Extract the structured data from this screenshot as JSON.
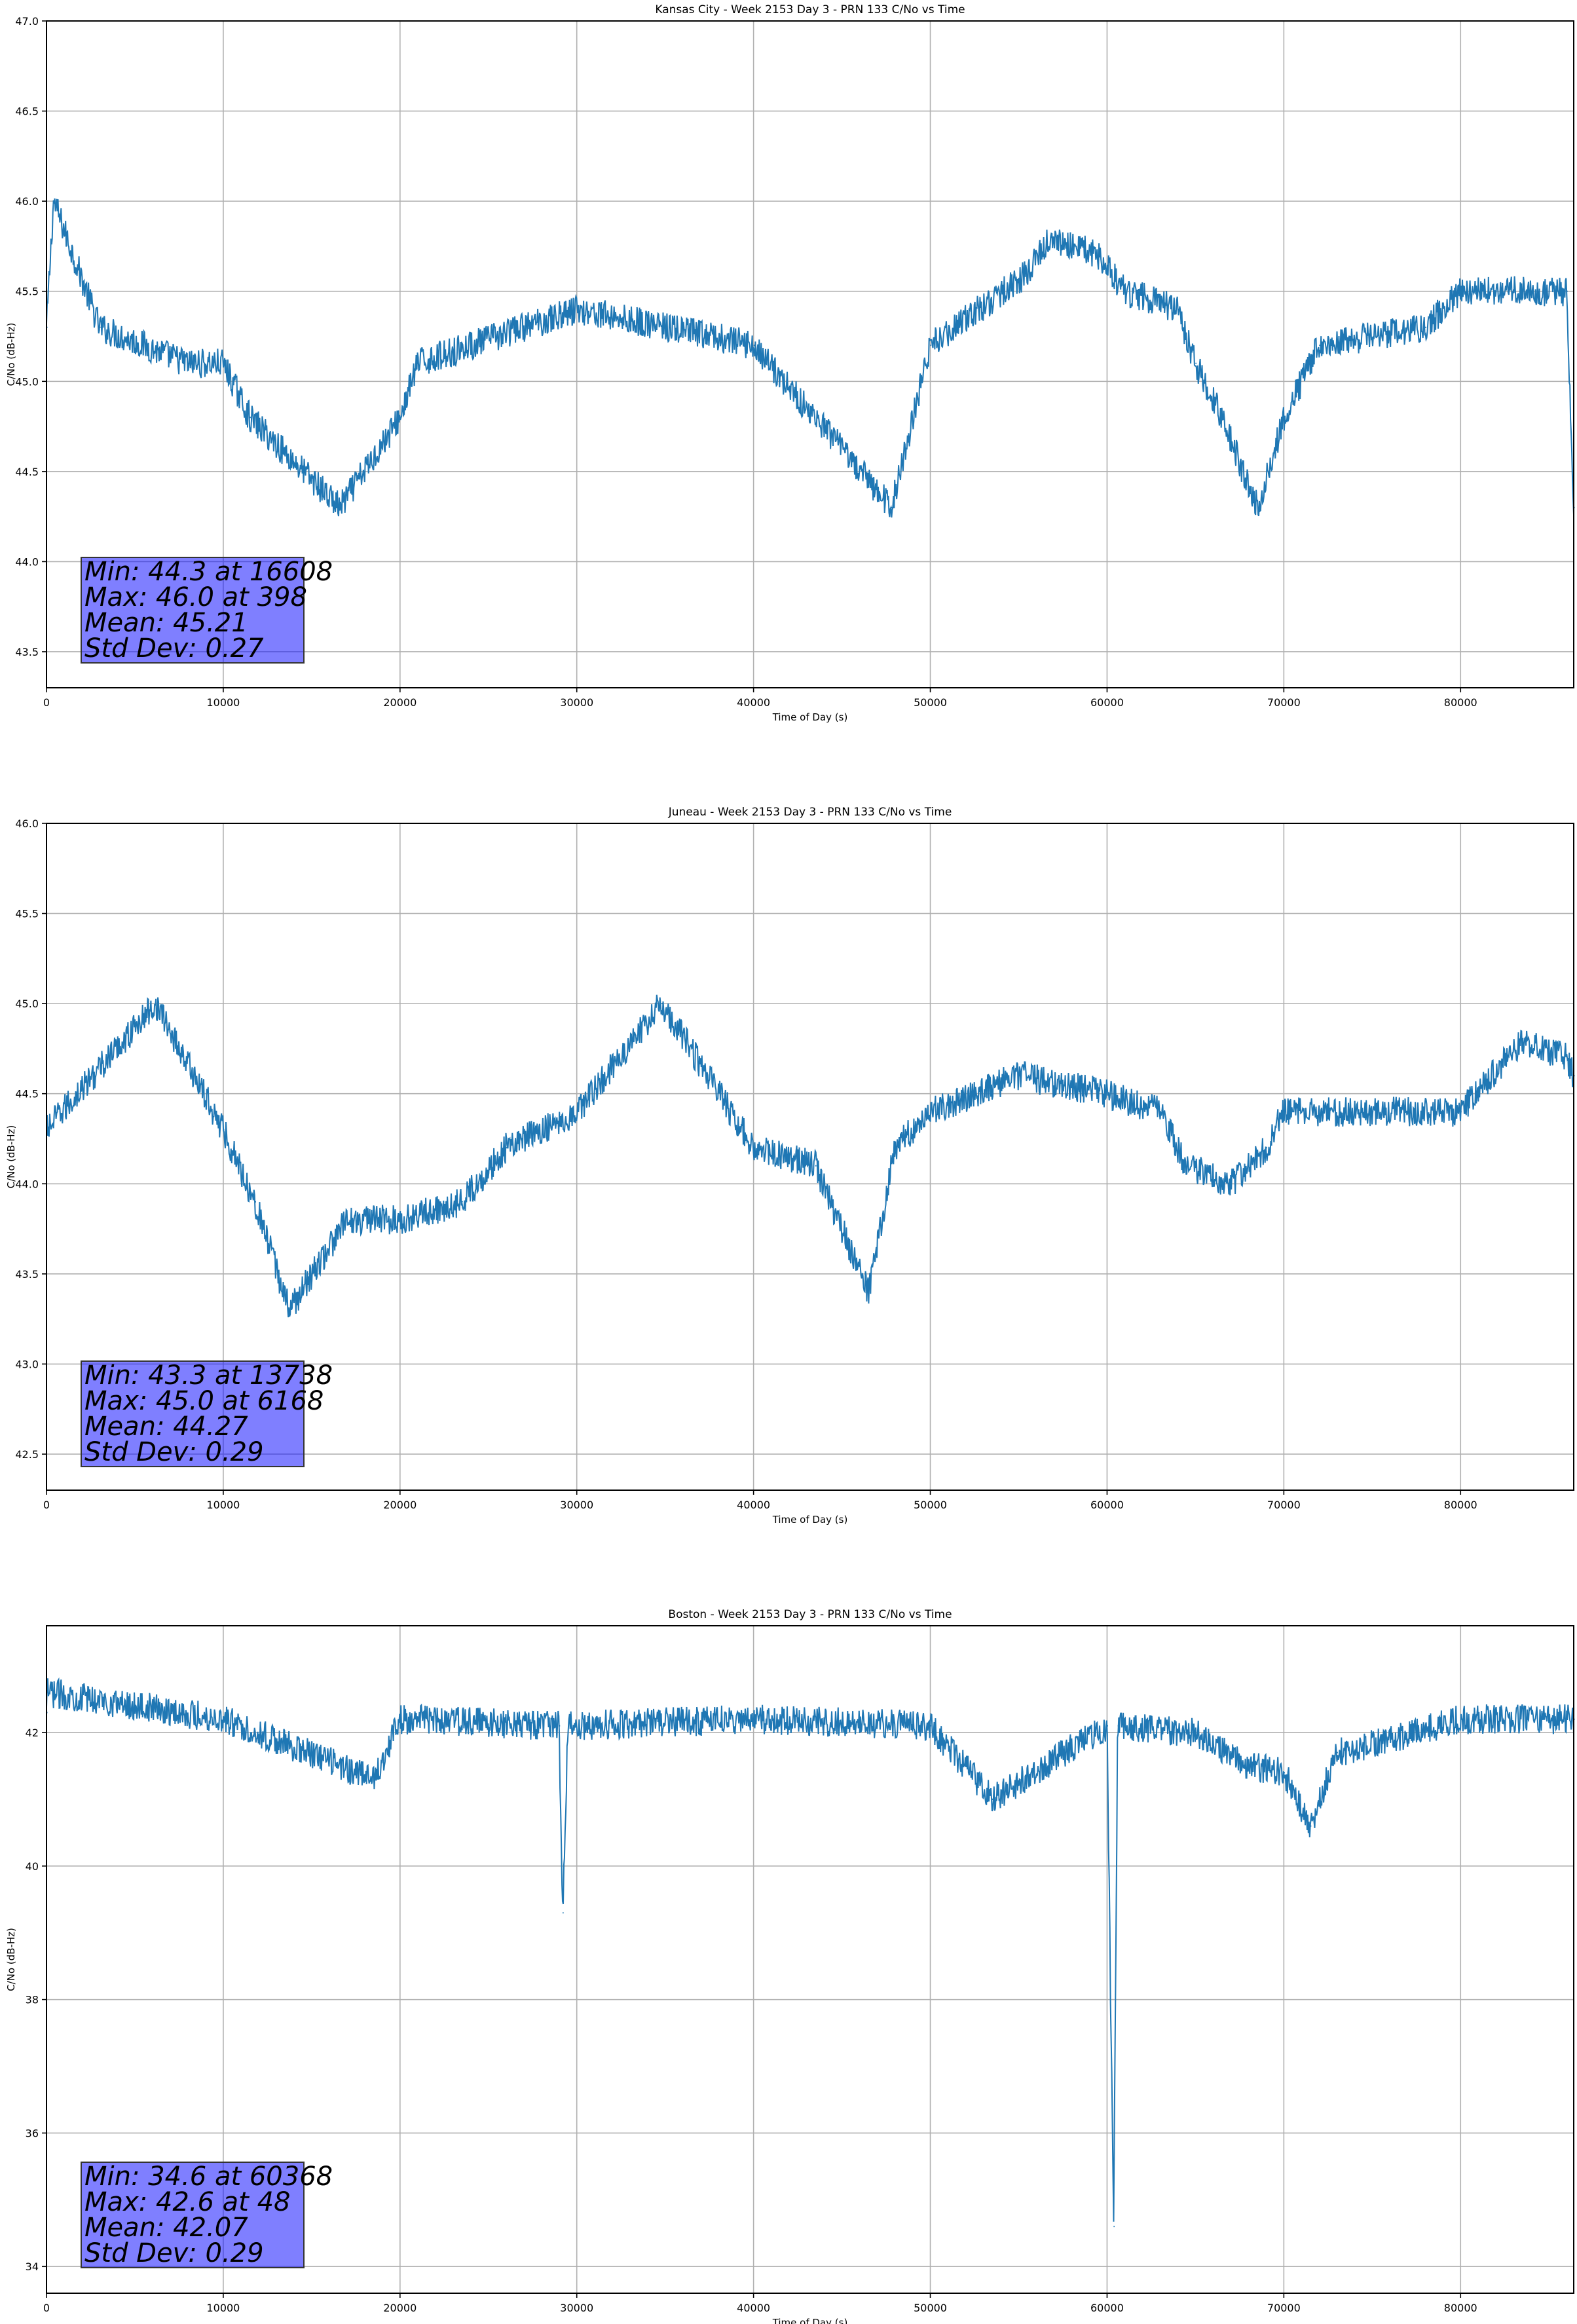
{
  "chart_data": [
    {
      "type": "line",
      "title": "Kansas City - Week 2153 Day 3 - PRN 133 C/No vs Time",
      "xlabel": "Time of Day (s)",
      "ylabel": "C/No (dB-Hz)",
      "xlim": [
        0,
        86400
      ],
      "ylim": [
        43.3,
        47.0
      ],
      "xticks": [
        "0",
        "10000",
        "20000",
        "30000",
        "40000",
        "50000",
        "60000",
        "70000",
        "80000"
      ],
      "yticks": [
        "43.5",
        "44.0",
        "44.5",
        "45.0",
        "45.5",
        "46.0",
        "46.5",
        "47.0"
      ],
      "grid": true,
      "color": "#1f77b4",
      "stats": {
        "min": "Min: 44.3 at 16608",
        "max": "Max: 46.0 at 398",
        "mean": "Mean: 45.21",
        "std": "Std Dev: 0.27"
      },
      "series": [
        {
          "x": [
            0,
            398,
            3000,
            8000,
            10000,
            11500,
            16608,
            20000,
            21000,
            24000,
            30000,
            40000,
            47800,
            50000,
            55500,
            56800,
            59500,
            61000,
            64000,
            65000,
            66500,
            68500,
            70000,
            72000,
            78000,
            80000,
            86000,
            86400
          ],
          "y": [
            45.3,
            46.0,
            45.3,
            45.1,
            45.1,
            44.8,
            44.3,
            44.8,
            45.1,
            45.2,
            45.4,
            45.2,
            44.3,
            45.2,
            45.6,
            45.8,
            45.7,
            45.5,
            45.4,
            45.1,
            44.8,
            44.3,
            44.8,
            45.2,
            45.3,
            45.5,
            45.5,
            44.3
          ]
        }
      ]
    },
    {
      "type": "line",
      "title": "Juneau - Week 2153 Day 3 - PRN 133 C/No vs Time",
      "xlabel": "Time of Day (s)",
      "ylabel": "C/No (dB-Hz)",
      "xlim": [
        0,
        86400
      ],
      "ylim": [
        42.3,
        46.0
      ],
      "xticks": [
        "0",
        "10000",
        "20000",
        "30000",
        "40000",
        "50000",
        "60000",
        "70000",
        "80000"
      ],
      "yticks": [
        "42.5",
        "43.0",
        "43.5",
        "44.0",
        "44.5",
        "45.0",
        "45.5",
        "46.0"
      ],
      "grid": true,
      "color": "#1f77b4",
      "stats": {
        "min": "Min: 43.3 at 13738",
        "max": "Max: 45.0 at 6168",
        "mean": "Mean: 44.27",
        "std": "Std Dev: 0.29"
      },
      "series": [
        {
          "x": [
            0,
            6168,
            10000,
            11800,
            13738,
            17000,
            20000,
            23500,
            26000,
            30000,
            34800,
            40000,
            43500,
            46500,
            48000,
            50000,
            55000,
            60000,
            63000,
            64500,
            67000,
            69000,
            70000,
            80000,
            83500,
            86000,
            86400
          ],
          "y": [
            44.3,
            45.0,
            44.3,
            43.9,
            43.3,
            43.8,
            43.8,
            43.9,
            44.2,
            44.4,
            45.0,
            44.2,
            44.1,
            43.4,
            44.2,
            44.4,
            44.6,
            44.5,
            44.4,
            44.1,
            44.0,
            44.2,
            44.4,
            44.4,
            44.8,
            44.7,
            44.6
          ]
        }
      ]
    },
    {
      "type": "line",
      "title": "Boston - Week 2153 Day 3 - PRN 133 C/No vs Time",
      "xlabel": "Time of Day (s)",
      "ylabel": "C/No (dB-Hz)",
      "xlim": [
        0,
        86400
      ],
      "ylim": [
        33.6,
        43.6
      ],
      "xticks": [
        "0",
        "10000",
        "20000",
        "30000",
        "40000",
        "50000",
        "60000",
        "70000",
        "80000"
      ],
      "yticks": [
        "34",
        "36",
        "38",
        "40",
        "42"
      ],
      "grid": true,
      "color": "#1f77b4",
      "stats": {
        "min": "Min: 34.6 at 60368",
        "max": "Max: 42.6 at 48",
        "mean": "Mean: 42.07",
        "std": "Std Dev: 0.29"
      },
      "series": [
        {
          "x": [
            0,
            48,
            10000,
            18500,
            20000,
            29000,
            29200,
            29500,
            40000,
            50000,
            53500,
            60000,
            60368,
            60600,
            65000,
            68000,
            70000,
            71500,
            73000,
            76000,
            80000,
            86400
          ],
          "y": [
            42.3,
            42.6,
            42.2,
            41.3,
            42.2,
            42.1,
            39.3,
            42.1,
            42.2,
            42.1,
            41.0,
            42.1,
            34.6,
            42.1,
            42.0,
            41.5,
            41.4,
            40.6,
            41.7,
            41.9,
            42.2,
            42.2
          ]
        }
      ]
    }
  ]
}
